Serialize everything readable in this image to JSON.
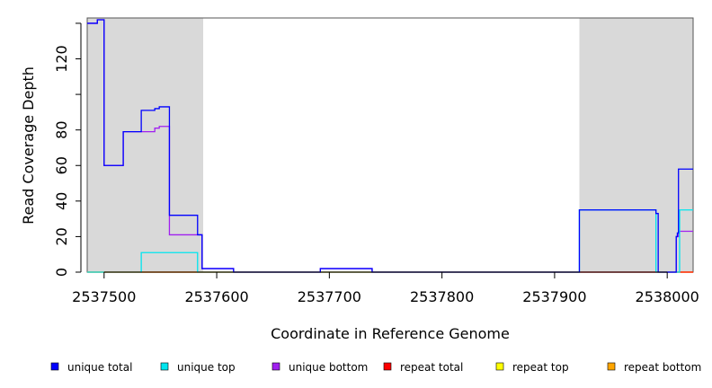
{
  "chart_data": {
    "type": "line",
    "title": "",
    "xlabel": "Coordinate in Reference Genome",
    "ylabel": "Read Coverage Depth",
    "xlim": [
      2537485,
      2538023
    ],
    "ylim": [
      0,
      143
    ],
    "x_ticks": [
      2537500,
      2537600,
      2537700,
      2537800,
      2537900,
      2538000
    ],
    "x_tick_labels": [
      "2537500",
      "2537600",
      "2537700",
      "2537800",
      "2537900",
      "2538000"
    ],
    "y_ticks": [
      0,
      20,
      40,
      60,
      80,
      100,
      120,
      140
    ],
    "y_tick_labels": [
      "0",
      "20",
      "40",
      "60",
      "80",
      "",
      "120",
      ""
    ],
    "grid": false,
    "legend_position": "bottom",
    "shaded_regions": [
      {
        "x0": 2537485,
        "x1": 2537588
      },
      {
        "x0": 2537922,
        "x1": 2538023
      }
    ],
    "series": [
      {
        "name": "unique total",
        "color": "#0000ff",
        "points": [
          [
            2537485,
            140
          ],
          [
            2537494,
            140
          ],
          [
            2537494,
            142
          ],
          [
            2537500,
            142
          ],
          [
            2537500,
            60
          ],
          [
            2537517,
            60
          ],
          [
            2537517,
            79
          ],
          [
            2537533,
            79
          ],
          [
            2537533,
            91
          ],
          [
            2537545,
            91
          ],
          [
            2537545,
            92
          ],
          [
            2537549,
            92
          ],
          [
            2537549,
            93
          ],
          [
            2537558,
            93
          ],
          [
            2537558,
            32
          ],
          [
            2537583,
            32
          ],
          [
            2537583,
            21
          ],
          [
            2537587,
            21
          ],
          [
            2537587,
            2
          ],
          [
            2537615,
            2
          ],
          [
            2537615,
            0
          ],
          [
            2537692,
            0
          ],
          [
            2537692,
            2
          ],
          [
            2537738,
            2
          ],
          [
            2537738,
            0
          ],
          [
            2537922,
            0
          ],
          [
            2537922,
            35
          ],
          [
            2537990,
            35
          ],
          [
            2537990,
            33
          ],
          [
            2537992,
            33
          ],
          [
            2537992,
            0
          ],
          [
            2538008,
            0
          ],
          [
            2538008,
            20
          ],
          [
            2538009,
            20
          ],
          [
            2538009,
            22
          ],
          [
            2538010,
            22
          ],
          [
            2538010,
            58
          ],
          [
            2538023,
            58
          ]
        ]
      },
      {
        "name": "unique top",
        "color": "#00e5ee",
        "points": [
          [
            2537485,
            0
          ],
          [
            2537533,
            0
          ],
          [
            2537533,
            11
          ],
          [
            2537583,
            11
          ],
          [
            2537583,
            0
          ],
          [
            2537922,
            0
          ],
          [
            2537922,
            35
          ],
          [
            2537990,
            35
          ],
          [
            2537990,
            0
          ],
          [
            2538011,
            0
          ],
          [
            2538011,
            35
          ],
          [
            2538023,
            35
          ]
        ]
      },
      {
        "name": "unique bottom",
        "color": "#a020f0",
        "points": [
          [
            2537485,
            140
          ],
          [
            2537494,
            140
          ],
          [
            2537494,
            142
          ],
          [
            2537500,
            142
          ],
          [
            2537500,
            60
          ],
          [
            2537517,
            60
          ],
          [
            2537517,
            79
          ],
          [
            2537545,
            79
          ],
          [
            2537545,
            81
          ],
          [
            2537549,
            81
          ],
          [
            2537549,
            82
          ],
          [
            2537558,
            82
          ],
          [
            2537558,
            21
          ],
          [
            2537587,
            21
          ],
          [
            2537587,
            2
          ],
          [
            2537615,
            2
          ],
          [
            2537615,
            0
          ],
          [
            2537692,
            0
          ],
          [
            2537692,
            2
          ],
          [
            2537738,
            2
          ],
          [
            2537738,
            0
          ],
          [
            2538008,
            0
          ],
          [
            2538008,
            20
          ],
          [
            2538010,
            20
          ],
          [
            2538010,
            23
          ],
          [
            2538023,
            23
          ]
        ]
      },
      {
        "name": "repeat total",
        "color": "#ff0000",
        "points": [
          [
            2537485,
            0
          ],
          [
            2538023,
            0
          ]
        ]
      },
      {
        "name": "repeat top",
        "color": "#ffff00",
        "points": [
          [
            2537485,
            0
          ],
          [
            2538023,
            0
          ]
        ]
      },
      {
        "name": "repeat bottom",
        "color": "#ffa500",
        "points": [
          [
            2537485,
            0
          ],
          [
            2538023,
            0
          ]
        ]
      }
    ]
  }
}
